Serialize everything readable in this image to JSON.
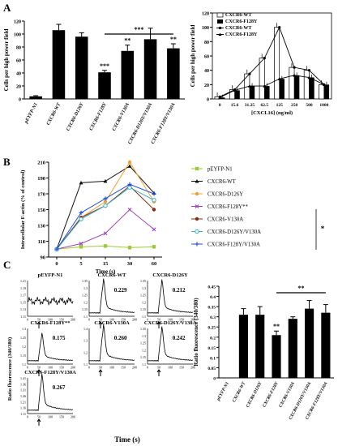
{
  "panels": {
    "a": "A",
    "b": "B",
    "c": "C"
  },
  "chart_data": [
    {
      "type": "bar",
      "panel": "A-left",
      "ylabel": "Cells per high power field",
      "ylim": [
        0,
        120
      ],
      "yticks": [
        "0",
        "20",
        "40",
        "60",
        "80",
        "100",
        "120"
      ],
      "categories": [
        "pEYFP-N1",
        "CXCR6-WT",
        "CXCR6-D126Y",
        "CXCR6-F128Y",
        "CXCR6-V130A",
        "CXCR6-D126Y/V130A",
        "CXCR6-F128Y/V130A"
      ],
      "values": [
        4,
        106,
        96,
        41,
        74,
        92,
        78
      ],
      "errors": [
        1,
        9,
        6,
        3,
        9,
        17,
        7
      ],
      "marks": [
        "",
        "",
        "",
        "***",
        "**",
        "",
        "**"
      ],
      "bracket_label": "***"
    },
    {
      "type": "bar",
      "panel": "A-right",
      "xlabel": "[CXCL16] (ng/ml)",
      "ylabel": "Cells per high power field",
      "ylim": [
        0,
        120
      ],
      "yticks": [
        "0",
        "20",
        "40",
        "60",
        "80",
        "100",
        "120"
      ],
      "categories": [
        "0",
        "15.6",
        "31.25",
        "62.5",
        "125",
        "250",
        "500",
        "1000"
      ],
      "legend": [
        "CXCR6-WT",
        "CXCR6-F128Y",
        "CXCR6-WT",
        "CXCR6-F128Y"
      ],
      "series": [
        {
          "values": [
            3,
            13,
            35,
            57,
            100,
            44,
            40,
            20
          ]
        },
        {
          "values": [
            2,
            12,
            18,
            18,
            28,
            33,
            30,
            20
          ]
        }
      ]
    },
    {
      "type": "line",
      "panel": "B",
      "xlabel": "Time (s)",
      "ylabel": "Intracellular F-actin (% of control)",
      "ylim": [
        90,
        210
      ],
      "yticks": [
        "90",
        "110",
        "130",
        "150",
        "170",
        "190",
        "210"
      ],
      "x": [
        "0",
        "5",
        "15",
        "30",
        "60"
      ],
      "series": [
        {
          "name": "pEYFP-N1",
          "color": "#9acd32",
          "marker": "square",
          "values": [
            100,
            103,
            104,
            102,
            103
          ]
        },
        {
          "name": "CXCR6-WT",
          "color": "#111111",
          "marker": "triangle",
          "values": [
            100,
            184,
            186,
            205,
            171
          ]
        },
        {
          "name": "CXCR6-D126Y",
          "color": "#f0a030",
          "marker": "circle",
          "values": [
            100,
            140,
            160,
            210,
            160
          ]
        },
        {
          "name": "CXCR6-F128Y**",
          "color": "#a040c0",
          "marker": "x",
          "values": [
            100,
            107,
            120,
            150,
            125
          ]
        },
        {
          "name": "CXCR6-V130A",
          "color": "#8b2a10",
          "marker": "circle",
          "values": [
            100,
            140,
            155,
            180,
            150
          ]
        },
        {
          "name": "CXCR6-D126Y/V130A",
          "color": "#30b0c0",
          "marker": "open-circle",
          "values": [
            100,
            138,
            155,
            178,
            162
          ]
        },
        {
          "name": "CXCR6-F128Y/V130A",
          "color": "#2050e0",
          "marker": "plus",
          "values": [
            100,
            146,
            164,
            182,
            170
          ]
        }
      ],
      "sig_mark": "*"
    },
    {
      "type": "line",
      "panel": "C-traces",
      "xlabel": "Time (s)",
      "ylabel": "Ratio fluorescence (340/380)",
      "x_ticks": [
        "0",
        "50",
        "100",
        "150",
        "200"
      ],
      "traces": [
        {
          "title": "pEYFP-N1",
          "value": "",
          "yticks": [
            "1.11",
            "1.13",
            "1.15",
            "1.17",
            "1.19",
            "1.21"
          ],
          "peak": 0.0
        },
        {
          "title": "CXCR6-WT",
          "value": "0.229",
          "yticks": [
            "1.1",
            "1.15",
            "1.2",
            "1.25",
            "1.3",
            "1.35"
          ],
          "peak": 0.8
        },
        {
          "title": "CXCR6-D126Y",
          "value": "0.212",
          "yticks": [
            "1.1",
            "1.15",
            "1.2",
            "1.25",
            "1.3",
            "1.35"
          ],
          "peak": 0.78
        },
        {
          "title": "CXCR6-F128Y**",
          "value": "0.175",
          "yticks": [
            "1.1",
            "1.15",
            "1.2",
            "1.25",
            "1.3"
          ],
          "peak": 0.65
        },
        {
          "title": "CXCR6-V130A",
          "value": "0.260",
          "yticks": [
            "1.1",
            "1.2",
            "1.3",
            "1.4"
          ],
          "peak": 0.85
        },
        {
          "title": "CXCR6-D126Y/V130A",
          "value": "0.242",
          "yticks": [
            "1.1",
            "1.15",
            "1.2",
            "1.25",
            "1.3",
            "1.35"
          ],
          "peak": 0.8
        },
        {
          "title": "CXCR6-F128Y/V130A",
          "value": "0.267",
          "yticks": [
            "1.11",
            "1.16",
            "1.21",
            "1.26",
            "1.31",
            "1.36",
            "1.41"
          ],
          "peak": 0.85
        }
      ]
    },
    {
      "type": "bar",
      "panel": "C-bars",
      "ylabel": "Ratio fluorescence (340/380)",
      "ylim": [
        0,
        0.45
      ],
      "yticks": [
        "0",
        "0.05",
        "0.1",
        "0.15",
        "0.2",
        "0.25",
        "0.3",
        "0.35",
        "0.4",
        "0.45"
      ],
      "categories": [
        "pEYFP-N1",
        "CXCR6-WT",
        "CXCR6-D126Y",
        "CXCR6-F128Y",
        "CXCR6-V130A",
        "CXCR6-D126Y/V130A",
        "CXCR6-F128Y/V130A"
      ],
      "values": [
        0,
        0.31,
        0.31,
        0.21,
        0.29,
        0.34,
        0.32
      ],
      "errors": [
        0,
        0.03,
        0.04,
        0.02,
        0.01,
        0.04,
        0.04
      ],
      "marks": [
        "",
        "",
        "",
        "**",
        "",
        "",
        ""
      ],
      "bracket_label": "**"
    }
  ]
}
